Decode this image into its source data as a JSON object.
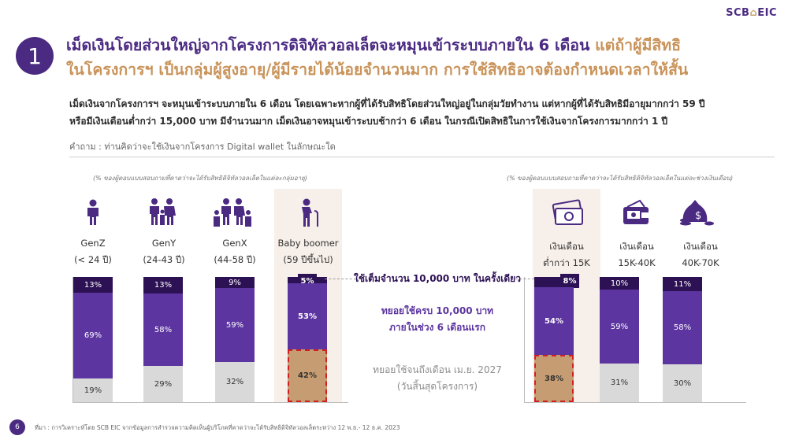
{
  "header": {
    "logo_left": "SCB",
    "logo_right": "EIC",
    "badge": "1",
    "headline_part1": "เม็ดเงินโดยส่วนใหญ่จากโครงการดิจิทัลวอลเล็ตจะหมุนเข้าระบบภายใน 6 เดือน",
    "headline_part2": " แต่ถ้าผู้มีสิทธิ",
    "headline_line2": "ในโครงการฯ เป็นกลุ่มผู้สูงอายุ/ผู้มีรายได้น้อยจำนวนมาก การใช้สิทธิอาจต้องกำหนดเวลาให้สั้น"
  },
  "summary": {
    "line1": "เม็ดเงินจากโครงการฯ จะหมุนเข้าระบบภายใน 6 เดือน โดยเฉพาะหากผู้ที่ได้รับสิทธิโดยส่วนใหญ่อยู่ในกลุ่มวัยทำงาน แต่หากผู้ที่ได้รับสิทธิมีอายุมากกว่า 59 ปี",
    "line2": "หรือมีเงินเดือนต่ำกว่า 15,000 บาท มีจำนวนมาก เม็ดเงินอาจหมุนเข้าระบบช้ากว่า 6 เดือน ในกรณีเปิดสิทธิในการใช้เงินจากโครงการมากกว่า 1 ปี"
  },
  "question": "คำถาม : ท่านคิดว่าจะใช้เงินจากโครงการ Digital wallet ในลักษณะใด",
  "legend_center": {
    "top": "ใช้เต็มจำนวน 10,000 บาท ในครั้งเดียว",
    "mid_line1": "ทยอยใช้ครบ 10,000 บาท",
    "mid_line2": "ภายในช่วง 6 เดือนแรก",
    "low_line1": "ทยอยใช้จนถึงเดือน เม.ย. 2027",
    "low_line2": "(วันสิ้นสุดโครงการ)"
  },
  "colors": {
    "top": "#2d1155",
    "mid": "#5c35a0",
    "low": "#d9d9d9",
    "highlight": "#c69c72",
    "accent": "#4b2a82",
    "gold": "#c9935a"
  },
  "chart_data": [
    {
      "type": "bar",
      "stacked": true,
      "note": "(% ของผู้ตอบแบบสอบถามที่คาดว่าจะได้รับสิทธิดิจิทัลวอลเล็ตในแต่ละกลุ่มอายุ)",
      "categories": [
        "GenZ",
        "GenY",
        "GenX",
        "Baby boomer"
      ],
      "category_sub": [
        "(< 24 ปี)",
        "(24-43 ปี)",
        "(44-58 ปี)",
        "(59 ปีขึ้นไป)"
      ],
      "icons": [
        "person-icon",
        "family-icon",
        "big-family-icon",
        "elderly-icon"
      ],
      "highlight": "Baby boomer",
      "series": [
        {
          "name": "ใช้เต็มจำนวน 10,000 บาท ในครั้งเดียว",
          "values": [
            13,
            13,
            9,
            5
          ]
        },
        {
          "name": "ทยอยใช้ครบ 10,000 บาท ภายในช่วง 6 เดือนแรก",
          "values": [
            69,
            58,
            59,
            53
          ]
        },
        {
          "name": "ทยอยใช้จนถึงเดือน เม.ย. 2027 (วันสิ้นสุดโครงการ)",
          "values": [
            19,
            29,
            32,
            42
          ]
        }
      ],
      "labels": [
        [
          "13%",
          "69%",
          "19%"
        ],
        [
          "13%",
          "58%",
          "29%"
        ],
        [
          "9%",
          "59%",
          "32%"
        ],
        [
          "5%",
          "53%",
          "42%"
        ]
      ]
    },
    {
      "type": "bar",
      "stacked": true,
      "note": "(% ของผู้ตอบแบบสอบถามที่คาดว่าจะได้รับสิทธิดิจิทัลวอลเล็ตในแต่ละช่วงเงินเดือน)",
      "categories": [
        "เงินเดือน",
        "เงินเดือน",
        "เงินเดือน"
      ],
      "category_sub": [
        "ต่ำกว่า 15K",
        "15K-40K",
        "40K-70K"
      ],
      "icons": [
        "cash-icon",
        "wallet-icon",
        "money-bag-icon"
      ],
      "highlight": "ต่ำกว่า 15K",
      "series": [
        {
          "name": "ใช้เต็มจำนวน 10,000 บาท ในครั้งเดียว",
          "values": [
            8,
            10,
            11
          ]
        },
        {
          "name": "ทยอยใช้ครบ 10,000 บาท ภายในช่วง 6 เดือนแรก",
          "values": [
            54,
            59,
            58
          ]
        },
        {
          "name": "ทยอยใช้จนถึงเดือน เม.ย. 2027 (วันสิ้นสุดโครงการ)",
          "values": [
            38,
            31,
            30
          ]
        }
      ],
      "labels": [
        [
          "8%",
          "54%",
          "38%"
        ],
        [
          "10%",
          "59%",
          "31%"
        ],
        [
          "11%",
          "58%",
          "30%"
        ]
      ]
    }
  ],
  "footer": {
    "page": "6",
    "source": "ที่มา : การวิเคราะห์โดย SCB EIC จากข้อมูลการสำรวจความคิดเห็นผู้บริโภคที่คาดว่าจะได้รับสิทธิดิจิทัลวอลเล็ตระหว่าง 12 พ.ย.- 12 ธ.ค. 2023"
  }
}
